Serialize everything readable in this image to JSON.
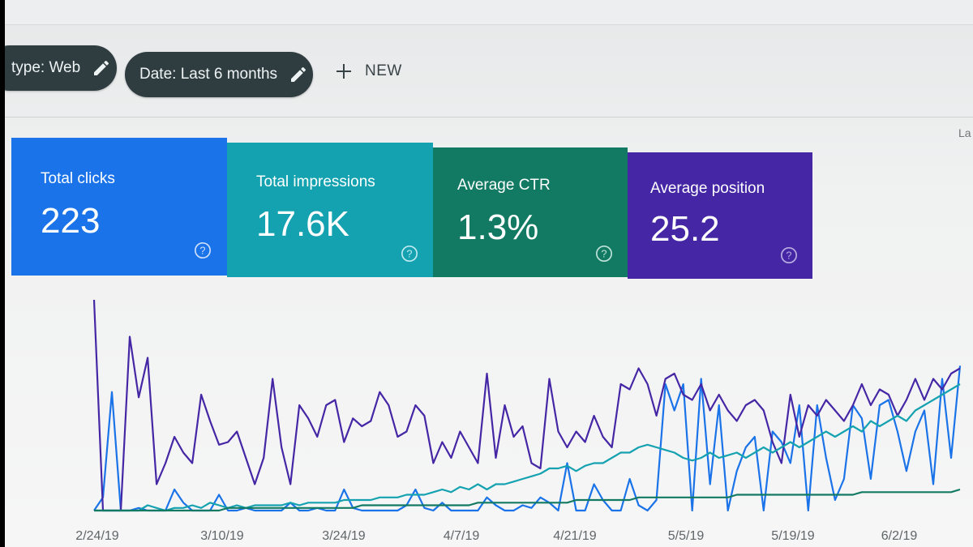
{
  "filters": {
    "search_type_chip": "type: Web",
    "date_chip": "Date: Last 6 months",
    "new_label": "NEW",
    "corner_text": "La"
  },
  "metrics": [
    {
      "label": "Total clicks",
      "value": "223",
      "color": "#1a73e8"
    },
    {
      "label": "Total impressions",
      "value": "17.6K",
      "color": "#15a2b0"
    },
    {
      "label": "Average CTR",
      "value": "1.3%",
      "color": "#127a63"
    },
    {
      "label": "Average position",
      "value": "25.2",
      "color": "#4527a6"
    }
  ],
  "icons": {
    "pencil": "pencil-icon",
    "plus": "plus-icon",
    "help": "help-circle-icon"
  },
  "chart_data": {
    "type": "line",
    "x_ticks": [
      "2/24/19",
      "3/10/19",
      "3/24/19",
      "4/7/19",
      "4/21/19",
      "5/5/19",
      "5/19/19",
      "6/2/19"
    ],
    "series": [
      {
        "color": "#1a73e8",
        "values": [
          0,
          5,
          45,
          0,
          0,
          1,
          0,
          0,
          0,
          8,
          3,
          0,
          0,
          0,
          6,
          0,
          0,
          1,
          0,
          0,
          0,
          0,
          3,
          0,
          0,
          1,
          0,
          0,
          8,
          1,
          0,
          0,
          0,
          0,
          0,
          2,
          8,
          1,
          0,
          3,
          0,
          0,
          0,
          0,
          5,
          2,
          0,
          0,
          2,
          1,
          5,
          3,
          0,
          18,
          0,
          0,
          10,
          4,
          0,
          0,
          12,
          2,
          0,
          4,
          48,
          38,
          48,
          0,
          50,
          10,
          40,
          0,
          15,
          24,
          28,
          0,
          30,
          26,
          18,
          40,
          0,
          40,
          20,
          4,
          12,
          40,
          35,
          12,
          40,
          42,
          30,
          15,
          30,
          38,
          10,
          50,
          20,
          55
        ]
      },
      {
        "color": "#4527a6",
        "values": [
          80,
          0,
          0,
          0,
          66,
          43,
          58,
          10,
          18,
          28,
          22,
          18,
          44,
          34,
          25,
          26,
          30,
          20,
          10,
          20,
          50,
          24,
          10,
          40,
          35,
          28,
          40,
          42,
          26,
          35,
          32,
          34,
          45,
          40,
          28,
          30,
          40,
          36,
          18,
          26,
          20,
          30,
          24,
          18,
          52,
          20,
          40,
          28,
          32,
          18,
          16,
          50,
          30,
          24,
          30,
          26,
          36,
          28,
          24,
          48,
          46,
          54,
          48,
          36,
          50,
          52,
          44,
          42,
          48,
          38,
          44,
          38,
          34,
          40,
          42,
          38,
          26,
          18,
          44,
          28,
          40,
          36,
          42,
          38,
          34,
          40,
          48,
          40,
          46,
          44,
          36,
          42,
          50,
          42,
          50,
          46,
          52,
          54
        ]
      },
      {
        "color": "#15a2b0",
        "values": [
          0,
          0,
          0,
          0,
          0,
          0,
          2,
          1,
          0,
          1,
          1,
          2,
          1,
          3,
          2,
          1,
          2,
          1,
          2,
          2,
          2,
          2,
          3,
          2,
          3,
          3,
          3,
          3,
          4,
          4,
          4,
          4,
          5,
          5,
          5,
          6,
          6,
          6,
          7,
          8,
          7,
          9,
          8,
          10,
          8,
          10,
          10,
          11,
          12,
          13,
          14,
          16,
          16,
          17,
          15,
          17,
          18,
          18,
          20,
          22,
          22,
          24,
          25,
          24,
          23,
          22,
          20,
          19,
          20,
          22,
          20,
          21,
          22,
          20,
          22,
          24,
          22,
          24,
          26,
          24,
          26,
          28,
          30,
          28,
          30,
          32,
          30,
          34,
          32,
          34,
          36,
          34,
          38,
          40,
          42,
          44,
          46,
          48
        ]
      },
      {
        "color": "#127a63",
        "values": [
          0,
          0,
          0,
          0,
          0,
          0,
          0,
          0,
          0,
          0,
          0,
          0,
          0,
          0,
          0,
          1,
          1,
          1,
          1,
          1,
          1,
          1,
          1,
          1,
          1,
          1,
          1,
          1,
          1,
          1,
          2,
          2,
          2,
          2,
          2,
          2,
          2,
          2,
          2,
          2,
          2,
          2,
          2,
          3,
          3,
          3,
          3,
          3,
          3,
          3,
          3,
          3,
          3,
          3,
          4,
          4,
          4,
          4,
          4,
          4,
          4,
          5,
          5,
          5,
          5,
          5,
          5,
          5,
          5,
          5,
          5,
          5,
          6,
          6,
          6,
          6,
          6,
          6,
          6,
          6,
          6,
          6,
          6,
          6,
          6,
          6,
          7,
          7,
          7,
          7,
          7,
          7,
          7,
          7,
          7,
          7,
          7,
          8
        ]
      }
    ]
  }
}
